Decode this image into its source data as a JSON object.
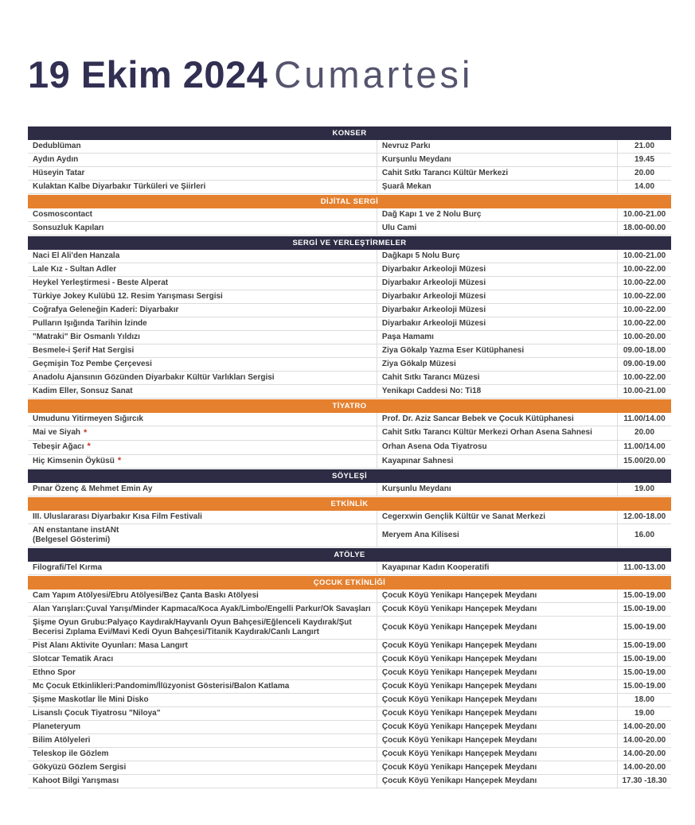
{
  "page": {
    "title_bold": "19 Ekim 2024",
    "title_light": "Cumartesi"
  },
  "colors": {
    "navy": "#2e2c44",
    "navy_title": "#312f52",
    "gray_title": "#55546e",
    "orange": "#e5802e",
    "asterisk_red": "#c0392b"
  },
  "marks": {
    "asterisk": "*"
  },
  "sections": [
    {
      "title": "KONSER",
      "style": "navy",
      "rows": [
        {
          "event": "Dedublüman",
          "venue": "Nevruz Parkı",
          "time": "21.00"
        },
        {
          "event": "Aydın Aydın",
          "venue": "Kurşunlu Meydanı",
          "time": "19.45"
        },
        {
          "event": "Hüseyin Tatar",
          "venue": "Cahit Sıtkı Tarancı Kültür Merkezi",
          "time": "20.00"
        },
        {
          "event": "Kulaktan Kalbe Diyarbakır Türküleri ve Şiirleri",
          "venue": "Şuarâ Mekan",
          "time": "14.00"
        }
      ]
    },
    {
      "title": "DİJİTAL SERGİ",
      "style": "orange",
      "rows": [
        {
          "event": "Cosmoscontact",
          "venue": "Dağ Kapı 1 ve 2 Nolu Burç",
          "time": "10.00-21.00"
        },
        {
          "event": "Sonsuzluk Kapıları",
          "venue": "Ulu Cami",
          "time": "18.00-00.00"
        }
      ]
    },
    {
      "title": "SERGİ VE YERLEŞTİRMELER",
      "style": "navy",
      "rows": [
        {
          "event": "Naci El Ali'den Hanzala",
          "venue": "Dağkapı 5 Nolu Burç",
          "time": "10.00-21.00"
        },
        {
          "event": "Lale Kız - Sultan Adler",
          "venue": "Diyarbakır Arkeoloji Müzesi",
          "time": "10.00-22.00"
        },
        {
          "event": "Heykel Yerleştirmesi - Beste Alperat",
          "venue": "Diyarbakır Arkeoloji Müzesi",
          "time": "10.00-22.00"
        },
        {
          "event": "Türkiye Jokey Kulübü 12. Resim Yarışması Sergisi",
          "venue": "Diyarbakır Arkeoloji Müzesi",
          "time": "10.00-22.00"
        },
        {
          "event": "Coğrafya Geleneğin Kaderi: Diyarbakır",
          "venue": "Diyarbakır Arkeoloji Müzesi",
          "time": "10.00-22.00"
        },
        {
          "event": "Pulların Işığında Tarihin İzinde",
          "venue": "Diyarbakır Arkeoloji Müzesi",
          "time": "10.00-22.00"
        },
        {
          "event": "\"Matraki\" Bir Osmanlı Yıldızı",
          "venue": "Paşa Hamamı",
          "time": "10.00-20.00"
        },
        {
          "event": "Besmele-i Şerif Hat Sergisi",
          "venue": "Ziya Gökalp Yazma Eser Kütüphanesi",
          "time": "09.00-18.00"
        },
        {
          "event": "Geçmişin Toz Pembe Çerçevesi",
          "venue": "Ziya Gökalp Müzesi",
          "time": "09.00-19.00"
        },
        {
          "event": "Anadolu Ajansının Gözünden Diyarbakır Kültür Varlıkları Sergisi",
          "venue": "Cahit Sıtkı Tarancı Müzesi",
          "time": "10.00-22.00"
        },
        {
          "event": "Kadim Eller, Sonsuz Sanat",
          "venue": "Yenikapı Caddesi No: Ti18",
          "time": "10.00-21.00"
        }
      ]
    },
    {
      "title": "TİYATRO",
      "style": "orange",
      "rows": [
        {
          "event": "Umudunu Yitirmeyen Sığırcık",
          "venue": "Prof. Dr. Aziz Sancar Bebek ve Çocuk Kütüphanesi",
          "time": "11.00/14.00"
        },
        {
          "event": "Mai ve Siyah",
          "asterisk": true,
          "venue": "Cahit Sıtkı Tarancı Kültür Merkezi Orhan Asena Sahnesi",
          "time": "20.00"
        },
        {
          "event": "Tebeşir Ağacı",
          "asterisk": true,
          "venue": "Orhan Asena Oda Tiyatrosu",
          "time": "11.00/14.00"
        },
        {
          "event": "Hiç Kimsenin Öyküsü",
          "asterisk": true,
          "venue": "Kayapınar Sahnesi",
          "time": "15.00/20.00"
        }
      ]
    },
    {
      "title": "SÖYLEŞİ",
      "style": "navy",
      "rows": [
        {
          "event": "Pınar Özenç & Mehmet Emin Ay",
          "venue": "Kurşunlu Meydanı",
          "time": "19.00"
        }
      ]
    },
    {
      "title": "ETKİNLİK",
      "style": "orange",
      "rows": [
        {
          "event": "III. Uluslararası Diyarbakır Kısa Film Festivali",
          "venue": "Cegerxwin Gençlik Kültür ve Sanat Merkezi",
          "time": "12.00-18.00"
        },
        {
          "event": "AN enstantane instANt",
          "event_line2": "(Belgesel Gösterimi)",
          "venue": "Meryem Ana Kilisesi",
          "time": "16.00"
        }
      ]
    },
    {
      "title": "ATÖLYE",
      "style": "navy",
      "rows": [
        {
          "event": "Filografi/Tel Kırma",
          "venue": "Kayapınar Kadın Kooperatifi",
          "time": "11.00-13.00"
        }
      ]
    },
    {
      "title": "ÇOCUK ETKİNLİĞİ",
      "style": "orange",
      "rows": [
        {
          "event": "Cam Yapım Atölyesi/Ebru Atölyesi/Bez Çanta Baskı Atölyesi",
          "venue": "Çocuk Köyü Yenikapı Hançepek Meydanı",
          "time": "15.00-19.00"
        },
        {
          "event": "Alan Yarışları:Çuval Yarışı/Minder Kapmaca/Koca Ayak/Limbo/Engelli Parkur/Ok Savaşları",
          "venue": "Çocuk Köyü Yenikapı Hançepek Meydanı",
          "time": "15.00-19.00"
        },
        {
          "event": "Şişme Oyun Grubu:Palyaço Kaydırak/Hayvanlı Oyun Bahçesi/Eğlenceli Kaydırak/Şut Becerisi Zıplama Evi/Mavi Kedi Oyun Bahçesi/Titanik Kaydırak/Canlı Langırt",
          "venue": "Çocuk Köyü Yenikapı Hançepek Meydanı",
          "time": "15.00-19.00"
        },
        {
          "event": "Pist Alanı Aktivite Oyunları: Masa Langırt",
          "venue": "Çocuk Köyü Yenikapı Hançepek Meydanı",
          "time": "15.00-19.00"
        },
        {
          "event": "Slotcar Tematik Aracı",
          "venue": "Çocuk Köyü Yenikapı Hançepek Meydanı",
          "time": "15.00-19.00"
        },
        {
          "event": "Ethno Spor",
          "venue": "Çocuk Köyü Yenikapı Hançepek Meydanı",
          "time": "15.00-19.00"
        },
        {
          "event": "Mc Çocuk Etkinlikleri:Pandomim/İlüzyonist Gösterisi/Balon Katlama",
          "venue": "Çocuk Köyü Yenikapı Hançepek Meydanı",
          "time": "15.00-19.00"
        },
        {
          "event": "Şişme Maskotlar İle Mini Disko",
          "venue": "Çocuk Köyü Yenikapı Hançepek Meydanı",
          "time": "18.00"
        },
        {
          "event": "Lisanslı Çocuk Tiyatrosu \"Niloya\"",
          "venue": "Çocuk Köyü Yenikapı Hançepek Meydanı",
          "time": "19.00"
        },
        {
          "event": "Planeteryum",
          "venue": "Çocuk Köyü Yenikapı Hançepek Meydanı",
          "time": "14.00-20.00"
        },
        {
          "event": "Bilim Atölyeleri",
          "venue": "Çocuk Köyü Yenikapı Hançepek Meydanı",
          "time": "14.00-20.00"
        },
        {
          "event": "Teleskop ile Gözlem",
          "venue": "Çocuk Köyü Yenikapı Hançepek Meydanı",
          "time": "14.00-20.00"
        },
        {
          "event": "Gökyüzü Gözlem Sergisi",
          "venue": "Çocuk Köyü Yenikapı Hançepek Meydanı",
          "time": "14.00-20.00"
        },
        {
          "event": "Kahoot Bilgi Yarışması",
          "venue": "Çocuk Köyü Yenikapı Hançepek Meydanı",
          "time": "17.30 -18.30"
        }
      ]
    }
  ]
}
